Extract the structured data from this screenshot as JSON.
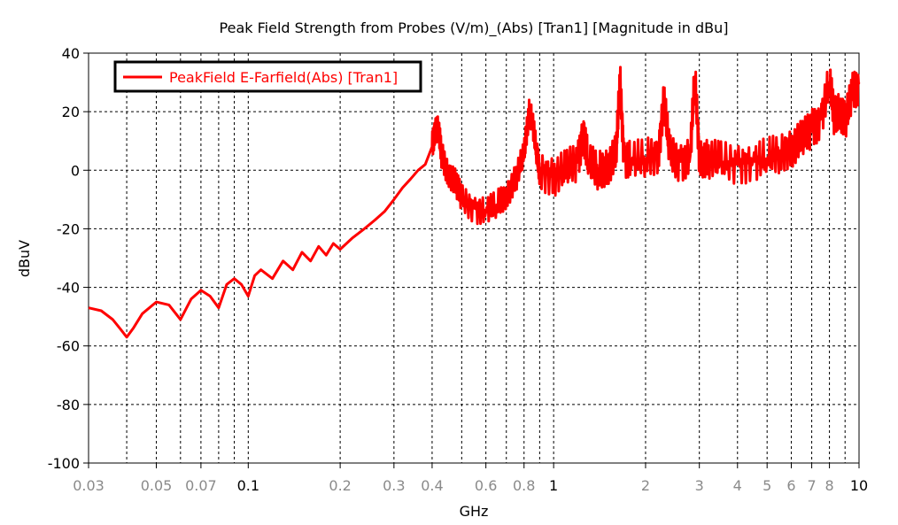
{
  "chart_data": {
    "type": "line",
    "title": "Peak Field Strength from Probes (V/m)_(Abs) [Tran1] [Magnitude in dBu]",
    "xlabel": "GHz",
    "ylabel": "dBuV",
    "xscale": "log",
    "xlim": [
      0.03,
      10
    ],
    "ylim": [
      -100,
      40
    ],
    "y_ticks": [
      40,
      20,
      0,
      -20,
      -40,
      -60,
      -80,
      -100
    ],
    "x_ticks": [
      {
        "value": 0.03,
        "label": "0.03",
        "major": false
      },
      {
        "value": 0.05,
        "label": "0.05",
        "major": false
      },
      {
        "value": 0.07,
        "label": "0.07",
        "major": false
      },
      {
        "value": 0.1,
        "label": "0.1",
        "major": true
      },
      {
        "value": 0.2,
        "label": "0.2",
        "major": false
      },
      {
        "value": 0.3,
        "label": "0.3",
        "major": false
      },
      {
        "value": 0.4,
        "label": "0.4",
        "major": false
      },
      {
        "value": 0.6,
        "label": "0.6",
        "major": false
      },
      {
        "value": 0.8,
        "label": "0.8",
        "major": false
      },
      {
        "value": 1,
        "label": "1",
        "major": true
      },
      {
        "value": 2,
        "label": "2",
        "major": false
      },
      {
        "value": 3,
        "label": "3",
        "major": false
      },
      {
        "value": 4,
        "label": "4",
        "major": false
      },
      {
        "value": 5,
        "label": "5",
        "major": false
      },
      {
        "value": 6,
        "label": "6",
        "major": false
      },
      {
        "value": 7,
        "label": "7",
        "major": false
      },
      {
        "value": 8,
        "label": "8",
        "major": false
      },
      {
        "value": 10,
        "label": "10",
        "major": true
      }
    ],
    "grid": true,
    "legend_position": "top-left",
    "series": [
      {
        "name": "PeakField E-Farfield(Abs) [Tran1]",
        "color": "#ff0000",
        "x": [
          0.03,
          0.033,
          0.036,
          0.038,
          0.04,
          0.042,
          0.045,
          0.05,
          0.055,
          0.06,
          0.065,
          0.07,
          0.075,
          0.08,
          0.085,
          0.09,
          0.095,
          0.1,
          0.105,
          0.11,
          0.12,
          0.13,
          0.14,
          0.15,
          0.16,
          0.17,
          0.18,
          0.19,
          0.2,
          0.22,
          0.24,
          0.26,
          0.28,
          0.3,
          0.32,
          0.34,
          0.36,
          0.38,
          0.4,
          0.41,
          0.42,
          0.43,
          0.45,
          0.48,
          0.5,
          0.55,
          0.6,
          0.65,
          0.7,
          0.75,
          0.8,
          0.83,
          0.85,
          0.88,
          0.9,
          1.0,
          1.1,
          1.2,
          1.25,
          1.3,
          1.4,
          1.5,
          1.6,
          1.65,
          1.7,
          1.8,
          2.0,
          2.2,
          2.3,
          2.4,
          2.6,
          2.8,
          2.9,
          3.0,
          3.2,
          3.5,
          4.0,
          4.5,
          5.0,
          5.5,
          6.0,
          6.5,
          7.0,
          7.5,
          8.0,
          8.3,
          8.6,
          9.0,
          9.5,
          10.0
        ],
        "y": [
          -47,
          -48,
          -51,
          -54,
          -57,
          -54,
          -49,
          -45,
          -46,
          -51,
          -44,
          -41,
          -43,
          -47,
          -39,
          -37,
          -39,
          -43,
          -36,
          -34,
          -37,
          -31,
          -34,
          -28,
          -31,
          -26,
          -29,
          -25,
          -27,
          -23,
          -20,
          -17,
          -14,
          -10,
          -6,
          -3,
          0,
          2,
          8,
          15,
          13,
          5,
          0,
          -5,
          -10,
          -13,
          -14,
          -12,
          -8,
          -3,
          5,
          20,
          18,
          5,
          0,
          -2,
          0,
          3,
          14,
          2,
          0,
          2,
          5,
          30,
          5,
          3,
          4,
          6,
          24,
          5,
          3,
          5,
          32,
          5,
          4,
          3,
          2,
          3,
          4,
          6,
          8,
          10,
          14,
          18,
          30,
          18,
          22,
          16,
          26,
          30
        ]
      }
    ]
  }
}
